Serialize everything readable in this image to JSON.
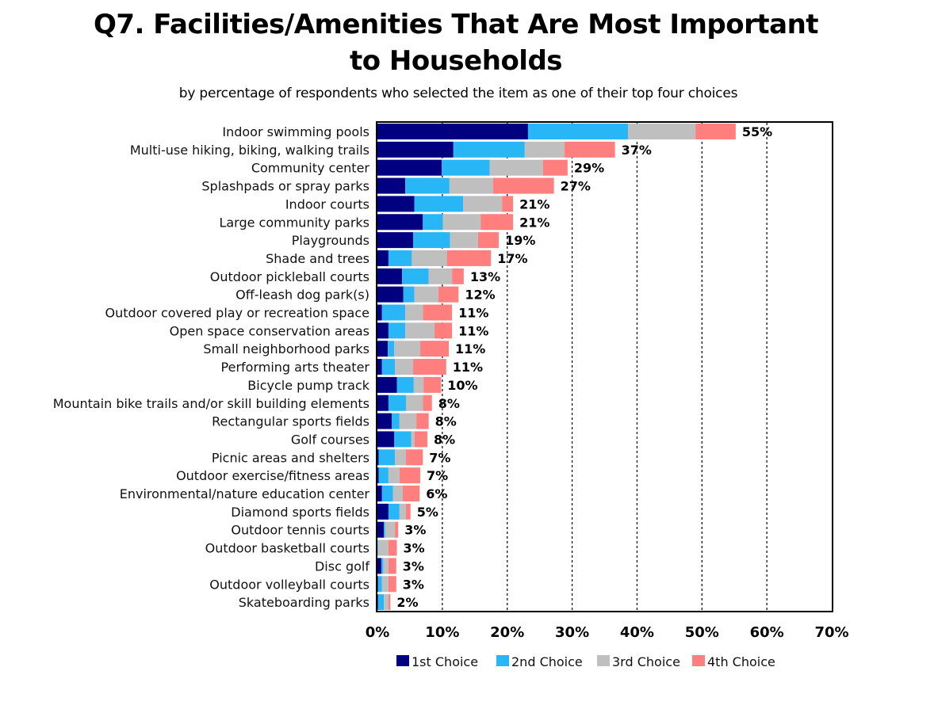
{
  "chart_data": {
    "type": "bar",
    "orientation": "horizontal",
    "stacked": true,
    "title": "Q7. Facilities/Amenities That Are Most Important to Households",
    "title_lines": [
      "Q7. Facilities/Amenities That Are Most Important",
      "to Households"
    ],
    "subtitle": "by percentage of respondents who selected the item as one of their top four choices",
    "xlabel": "",
    "ylabel": "",
    "xlim": [
      0,
      70
    ],
    "xticks": [
      0,
      10,
      20,
      30,
      40,
      50,
      60,
      70
    ],
    "xtick_labels": [
      "0%",
      "10%",
      "20%",
      "30%",
      "40%",
      "50%",
      "60%",
      "70%"
    ],
    "grid": "vertical dashed",
    "legend_position": "bottom",
    "categories": [
      "Indoor swimming pools",
      "Multi-use hiking, biking, walking trails",
      "Community center",
      "Splashpads or spray parks",
      "Indoor courts",
      "Large community parks",
      "Playgrounds",
      "Shade and trees",
      "Outdoor pickleball courts",
      "Off-leash dog park(s)",
      "Outdoor covered play or recreation space",
      "Open space conservation areas",
      "Small neighborhood parks",
      "Performing arts theater",
      "Bicycle pump track",
      "Mountain bike trails and/or skill building elements",
      "Rectangular sports fields",
      "Golf courses",
      "Picnic areas and shelters",
      "Outdoor exercise/fitness areas",
      "Environmental/nature education center",
      "Diamond sports fields",
      "Outdoor tennis courts",
      "Outdoor basketball courts",
      "Disc golf",
      "Outdoor volleyball courts",
      "Skateboarding parks"
    ],
    "series": [
      {
        "name": "1st Choice",
        "color": "#000080",
        "values": [
          23.2,
          11.7,
          9.9,
          4.3,
          5.7,
          7.0,
          5.5,
          1.7,
          3.8,
          4.0,
          0.7,
          1.7,
          1.6,
          0.7,
          3.0,
          1.7,
          2.2,
          2.6,
          0.2,
          0.2,
          0.7,
          1.7,
          1.0,
          0.0,
          0.6,
          0.1,
          0.1
        ]
      },
      {
        "name": "2nd Choice",
        "color": "#29B6F6",
        "values": [
          15.4,
          11.0,
          7.4,
          6.8,
          7.5,
          3.1,
          5.7,
          3.6,
          4.1,
          1.7,
          3.6,
          2.6,
          1.0,
          2.0,
          2.6,
          2.7,
          1.2,
          2.6,
          2.5,
          1.5,
          1.7,
          1.7,
          0.2,
          0.1,
          0.3,
          0.6,
          0.9
        ]
      },
      {
        "name": "3rd Choice",
        "color": "#BFBFBF",
        "values": [
          10.4,
          6.1,
          8.2,
          6.7,
          6.0,
          5.8,
          4.3,
          5.4,
          3.6,
          3.7,
          2.7,
          4.5,
          4.0,
          2.8,
          1.5,
          2.6,
          2.6,
          0.5,
          1.7,
          1.7,
          1.5,
          1.0,
          1.5,
          1.6,
          0.8,
          1.0,
          0.7
        ]
      },
      {
        "name": "4th Choice",
        "color": "#FF7F7F",
        "values": [
          6.2,
          7.8,
          3.8,
          9.4,
          1.7,
          5.0,
          3.2,
          6.8,
          1.8,
          3.1,
          4.5,
          2.7,
          4.4,
          5.1,
          2.7,
          1.4,
          1.9,
          2.0,
          2.6,
          3.2,
          2.6,
          0.7,
          0.5,
          1.3,
          1.2,
          1.2,
          0.3
        ]
      }
    ],
    "totals": [
      55,
      37,
      29,
      27,
      21,
      21,
      19,
      17,
      13,
      12,
      11,
      11,
      11,
      11,
      10,
      8,
      8,
      8,
      7,
      7,
      6,
      5,
      3,
      3,
      3,
      3,
      2
    ],
    "total_labels": [
      "55%",
      "37%",
      "29%",
      "27%",
      "21%",
      "21%",
      "19%",
      "17%",
      "13%",
      "12%",
      "11%",
      "11%",
      "11%",
      "11%",
      "10%",
      "8%",
      "8%",
      "8%",
      "7%",
      "7%",
      "6%",
      "5%",
      "3%",
      "3%",
      "3%",
      "3%",
      "2%"
    ]
  }
}
